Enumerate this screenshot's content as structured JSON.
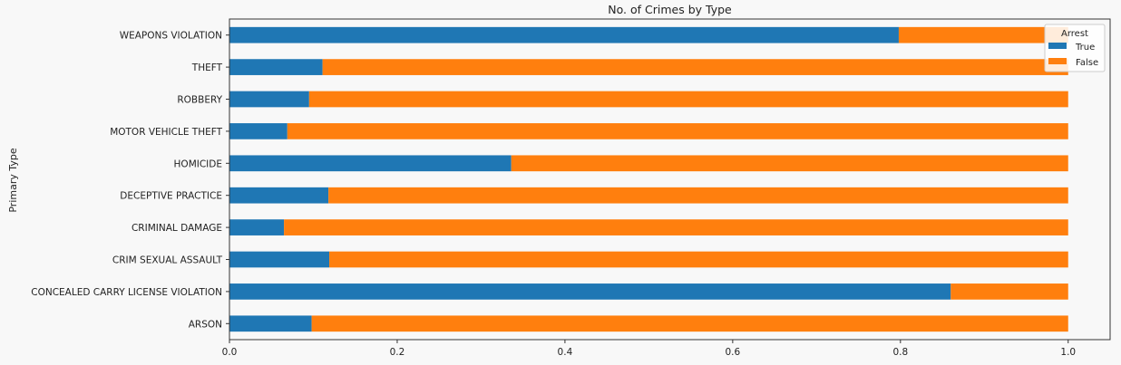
{
  "chart_data": {
    "type": "bar",
    "orientation": "horizontal",
    "stacked": true,
    "title": "No. of Crimes by Type",
    "xlabel": "",
    "ylabel": "Primary Type",
    "xlim": [
      0,
      1.05
    ],
    "xticks": [
      0.0,
      0.2,
      0.4,
      0.6,
      0.8,
      1.0
    ],
    "xtick_labels": [
      "0.0",
      "0.2",
      "0.4",
      "0.6",
      "0.8",
      "1.0"
    ],
    "grid": false,
    "legend": {
      "title": "Arrest",
      "placement": "top-right"
    },
    "categories": [
      "ARSON",
      "CONCEALED CARRY LICENSE VIOLATION",
      "CRIM SEXUAL ASSAULT",
      "CRIMINAL DAMAGE",
      "DECEPTIVE PRACTICE",
      "HOMICIDE",
      "MOTOR VEHICLE THEFT",
      "ROBBERY",
      "THEFT",
      "WEAPONS VIOLATION"
    ],
    "series": [
      {
        "name": "True",
        "color": "#1f77b4",
        "values": [
          0.098,
          0.86,
          0.119,
          0.065,
          0.118,
          0.336,
          0.069,
          0.095,
          0.111,
          0.798
        ]
      },
      {
        "name": "False",
        "color": "#ff7f0e",
        "values": [
          0.902,
          0.14,
          0.881,
          0.935,
          0.882,
          0.664,
          0.931,
          0.905,
          0.889,
          0.202
        ]
      }
    ]
  }
}
